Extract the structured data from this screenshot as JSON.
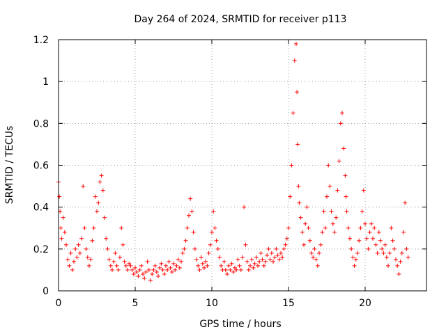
{
  "chart_data": {
    "type": "scatter",
    "title": "Day 264 of 2024, SRMTID for receiver p113",
    "xlabel": "GPS time / hours",
    "ylabel": "SRMTID / TECUs",
    "xlim": [
      0,
      24
    ],
    "ylim": [
      0,
      1.2
    ],
    "xticks": [
      0,
      5,
      10,
      15,
      20
    ],
    "xtick_labels": [
      "0",
      "5",
      "10",
      "15",
      "20"
    ],
    "yticks": [
      0,
      0.2,
      0.4,
      0.6,
      0.8,
      1,
      1.2
    ],
    "ytick_labels": [
      "0",
      "0.2",
      "0.4",
      "0.6",
      "0.8",
      "1",
      "1.2"
    ],
    "grid": true,
    "marker": "+",
    "marker_color": "#ff0000",
    "series": [
      {
        "name": "SRMTID",
        "x": [
          0.0,
          0.05,
          0.1,
          0.15,
          0.2,
          0.3,
          0.4,
          0.5,
          0.6,
          0.7,
          0.8,
          0.9,
          1.0,
          1.1,
          1.2,
          1.3,
          1.4,
          1.5,
          1.6,
          1.7,
          1.8,
          1.9,
          2.0,
          2.1,
          2.2,
          2.3,
          2.4,
          2.5,
          2.6,
          2.7,
          2.8,
          2.9,
          3.0,
          3.1,
          3.2,
          3.3,
          3.4,
          3.5,
          3.6,
          3.7,
          3.8,
          3.9,
          4.0,
          4.1,
          4.2,
          4.3,
          4.4,
          4.5,
          4.6,
          4.7,
          4.8,
          4.9,
          5.0,
          5.1,
          5.2,
          5.3,
          5.4,
          5.5,
          5.6,
          5.7,
          5.8,
          5.9,
          6.0,
          6.1,
          6.2,
          6.3,
          6.4,
          6.5,
          6.6,
          6.7,
          6.8,
          6.9,
          7.0,
          7.1,
          7.2,
          7.3,
          7.4,
          7.5,
          7.6,
          7.7,
          7.8,
          7.9,
          8.0,
          8.1,
          8.2,
          8.3,
          8.4,
          8.5,
          8.6,
          8.7,
          8.8,
          8.9,
          9.0,
          9.1,
          9.2,
          9.3,
          9.4,
          9.5,
          9.6,
          9.7,
          9.8,
          9.9,
          10.0,
          10.1,
          10.2,
          10.3,
          10.4,
          10.5,
          10.6,
          10.7,
          10.8,
          10.9,
          11.0,
          11.1,
          11.2,
          11.3,
          11.4,
          11.5,
          11.6,
          11.7,
          11.8,
          11.9,
          12.0,
          12.1,
          12.2,
          12.3,
          12.4,
          12.5,
          12.6,
          12.7,
          12.8,
          12.9,
          13.0,
          13.1,
          13.2,
          13.3,
          13.4,
          13.5,
          13.6,
          13.7,
          13.8,
          13.9,
          14.0,
          14.1,
          14.2,
          14.3,
          14.4,
          14.5,
          14.6,
          14.7,
          14.8,
          14.9,
          15.0,
          15.1,
          15.2,
          15.3,
          15.4,
          15.5,
          15.55,
          15.6,
          15.65,
          15.7,
          15.8,
          15.9,
          16.0,
          16.1,
          16.2,
          16.3,
          16.4,
          16.5,
          16.6,
          16.7,
          16.8,
          16.9,
          17.0,
          17.1,
          17.2,
          17.3,
          17.4,
          17.5,
          17.6,
          17.7,
          17.8,
          17.9,
          18.0,
          18.1,
          18.2,
          18.3,
          18.4,
          18.5,
          18.6,
          18.7,
          18.75,
          18.8,
          18.9,
          19.0,
          19.1,
          19.2,
          19.3,
          19.4,
          19.5,
          19.6,
          19.7,
          19.8,
          19.9,
          20.0,
          20.1,
          20.2,
          20.3,
          20.4,
          20.5,
          20.6,
          20.7,
          20.8,
          20.9,
          21.0,
          21.1,
          21.2,
          21.3,
          21.4,
          21.5,
          21.6,
          21.7,
          21.8,
          21.9,
          22.0,
          22.1,
          22.2,
          22.3,
          22.4,
          22.5,
          22.6,
          22.7,
          22.8
        ],
        "y": [
          0.52,
          0.45,
          0.38,
          0.3,
          0.25,
          0.35,
          0.28,
          0.22,
          0.15,
          0.12,
          0.18,
          0.1,
          0.14,
          0.2,
          0.16,
          0.22,
          0.18,
          0.25,
          0.5,
          0.3,
          0.2,
          0.16,
          0.12,
          0.15,
          0.24,
          0.3,
          0.45,
          0.38,
          0.42,
          0.52,
          0.55,
          0.48,
          0.35,
          0.25,
          0.2,
          0.15,
          0.12,
          0.1,
          0.14,
          0.18,
          0.12,
          0.1,
          0.16,
          0.3,
          0.22,
          0.14,
          0.12,
          0.1,
          0.13,
          0.12,
          0.1,
          0.08,
          0.11,
          0.09,
          0.07,
          0.1,
          0.12,
          0.08,
          0.06,
          0.09,
          0.14,
          0.1,
          0.05,
          0.08,
          0.1,
          0.12,
          0.09,
          0.07,
          0.11,
          0.13,
          0.1,
          0.08,
          0.12,
          0.1,
          0.14,
          0.11,
          0.09,
          0.13,
          0.1,
          0.12,
          0.15,
          0.11,
          0.14,
          0.18,
          0.2,
          0.24,
          0.3,
          0.36,
          0.44,
          0.38,
          0.28,
          0.2,
          0.15,
          0.12,
          0.1,
          0.16,
          0.13,
          0.11,
          0.14,
          0.12,
          0.18,
          0.22,
          0.28,
          0.38,
          0.3,
          0.24,
          0.2,
          0.16,
          0.12,
          0.1,
          0.14,
          0.1,
          0.08,
          0.12,
          0.1,
          0.13,
          0.09,
          0.11,
          0.1,
          0.15,
          0.12,
          0.1,
          0.16,
          0.4,
          0.22,
          0.14,
          0.1,
          0.12,
          0.15,
          0.11,
          0.13,
          0.16,
          0.12,
          0.14,
          0.18,
          0.15,
          0.12,
          0.14,
          0.17,
          0.2,
          0.15,
          0.18,
          0.14,
          0.16,
          0.2,
          0.17,
          0.15,
          0.18,
          0.16,
          0.2,
          0.22,
          0.25,
          0.3,
          0.45,
          0.6,
          0.85,
          1.1,
          1.18,
          0.95,
          0.7,
          0.5,
          0.42,
          0.35,
          0.28,
          0.22,
          0.32,
          0.4,
          0.3,
          0.24,
          0.18,
          0.16,
          0.2,
          0.15,
          0.12,
          0.18,
          0.22,
          0.28,
          0.38,
          0.3,
          0.45,
          0.6,
          0.5,
          0.38,
          0.32,
          0.28,
          0.35,
          0.48,
          0.62,
          0.8,
          0.85,
          0.68,
          0.55,
          0.45,
          0.38,
          0.3,
          0.25,
          0.2,
          0.16,
          0.12,
          0.15,
          0.18,
          0.24,
          0.3,
          0.38,
          0.48,
          0.32,
          0.25,
          0.2,
          0.28,
          0.32,
          0.25,
          0.3,
          0.22,
          0.18,
          0.28,
          0.24,
          0.2,
          0.18,
          0.22,
          0.16,
          0.12,
          0.18,
          0.3,
          0.24,
          0.2,
          0.15,
          0.12,
          0.08,
          0.14,
          0.18,
          0.28,
          0.42,
          0.2,
          0.16
        ]
      }
    ]
  }
}
